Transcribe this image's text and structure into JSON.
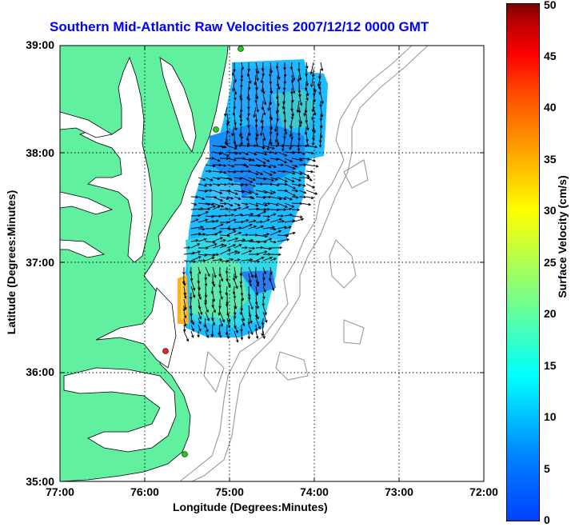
{
  "title": "Southern Mid-Atlantic Raw Velocities 2007/12/12 0000 GMT",
  "xlabel": "Longitude (Degrees:Minutes)",
  "ylabel": "Latitude (Degrees:Minutes)",
  "x_ticks": [
    "77:00",
    "76:00",
    "75:00",
    "74:00",
    "73:00",
    "72:00"
  ],
  "y_ticks": [
    "39:00",
    "38:00",
    "37:00",
    "36:00",
    "35:00"
  ],
  "colorbar": {
    "label": "Surface Velocity (cm/s)",
    "ticks": [
      "0",
      "5",
      "10",
      "15",
      "20",
      "25",
      "30",
      "35",
      "40",
      "45",
      "50"
    ],
    "range": [
      0,
      50
    ]
  },
  "colors": {
    "title": "#0000ff",
    "land": "#60f0a0",
    "coastline": "#000000",
    "bathymetry": "#999999",
    "site_marker": "#22cc22",
    "site_marker_alert": "#ee2222"
  },
  "map_extent": {
    "lon": [
      -77,
      -72
    ],
    "lat": [
      35,
      39
    ]
  },
  "sites": [
    {
      "lon": -75.1,
      "lat": 38.97,
      "status": "ok"
    },
    {
      "lon": -75.15,
      "lat": 38.24,
      "status": "ok"
    },
    {
      "lon": -75.73,
      "lat": 36.18,
      "status": "alert"
    },
    {
      "lon": -75.52,
      "lat": 35.23,
      "status": "ok"
    }
  ]
}
